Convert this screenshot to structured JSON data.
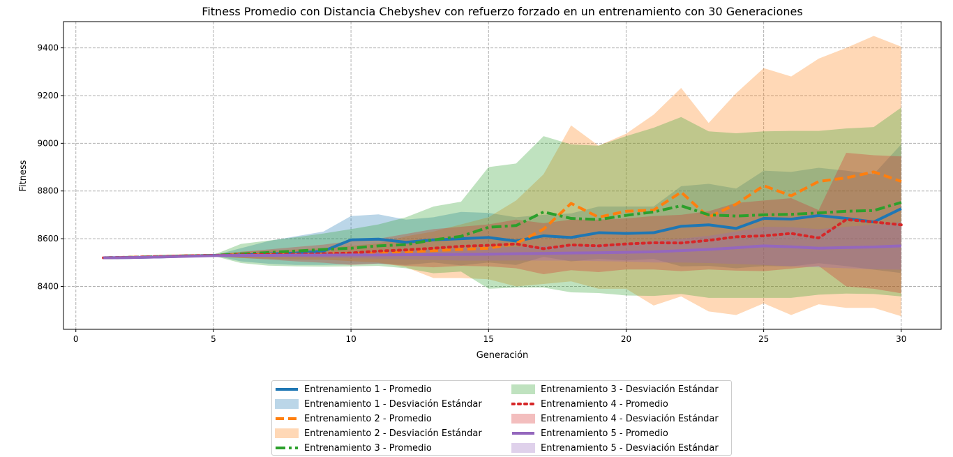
{
  "chart_data": {
    "type": "line",
    "title": "Fitness Promedio con Distancia Chebyshev con refuerzo forzado en un entrenamiento con 30 Generaciones",
    "xlabel": "Generación",
    "ylabel": "Fitness",
    "xlim": [
      -0.45,
      31.45
    ],
    "ylim": [
      8220,
      9510
    ],
    "xticks": [
      0,
      5,
      10,
      15,
      20,
      25,
      30
    ],
    "yticks": [
      8400,
      8600,
      8800,
      9000,
      9200,
      9400
    ],
    "grid": true,
    "legend_position": "bottom-center",
    "x": [
      1,
      2,
      3,
      4,
      5,
      6,
      7,
      8,
      9,
      10,
      11,
      12,
      13,
      14,
      15,
      16,
      17,
      18,
      19,
      20,
      21,
      22,
      23,
      24,
      25,
      26,
      27,
      28,
      29,
      30
    ],
    "series": [
      {
        "name": "Entrenamiento 1 - Promedio",
        "std_name": "Entrenamiento 1 - Desviación Estándar",
        "color": "#1f77b4",
        "line_style": "solid",
        "values": [
          8520,
          8521,
          8523,
          8527,
          8530,
          8532,
          8536,
          8540,
          8548,
          8595,
          8598,
          8585,
          8595,
          8600,
          8605,
          8590,
          8612,
          8605,
          8625,
          8622,
          8625,
          8652,
          8658,
          8643,
          8685,
          8682,
          8697,
          8685,
          8670,
          8726
        ],
        "upper": [
          8520,
          8522,
          8525,
          8530,
          8530,
          8560,
          8590,
          8610,
          8630,
          8695,
          8702,
          8680,
          8690,
          8712,
          8708,
          8690,
          8700,
          8706,
          8735,
          8735,
          8735,
          8820,
          8830,
          8810,
          8885,
          8880,
          8897,
          8885,
          8870,
          8996
        ],
        "lower": [
          8520,
          8520,
          8521,
          8524,
          8530,
          8505,
          8495,
          8490,
          8490,
          8492,
          8495,
          8490,
          8500,
          8488,
          8500,
          8490,
          8524,
          8505,
          8515,
          8509,
          8515,
          8484,
          8486,
          8476,
          8485,
          8484,
          8497,
          8485,
          8470,
          8456
        ]
      },
      {
        "name": "Entrenamiento 2 - Promedio",
        "std_name": "Entrenamiento 2 - Desviación Estándar",
        "color": "#ff7f0e",
        "line_style": "dashed",
        "values": [
          8520,
          8522,
          8525,
          8528,
          8530,
          8532,
          8533,
          8534,
          8536,
          8538,
          8540,
          8545,
          8550,
          8555,
          8560,
          8580,
          8640,
          8748,
          8690,
          8715,
          8720,
          8795,
          8690,
          8745,
          8822,
          8780,
          8840,
          8855,
          8880,
          8840
        ],
        "upper": [
          8520,
          8524,
          8530,
          8535,
          8535,
          8545,
          8550,
          8555,
          8560,
          8570,
          8580,
          8610,
          8630,
          8660,
          8690,
          8760,
          8870,
          9075,
          8990,
          9040,
          9120,
          9232,
          9085,
          9210,
          9315,
          9280,
          9355,
          9400,
          9450,
          9405
        ],
        "lower": [
          8520,
          8520,
          8520,
          8521,
          8525,
          8519,
          8516,
          8513,
          8512,
          8506,
          8500,
          8480,
          8435,
          8435,
          8430,
          8400,
          8410,
          8421,
          8390,
          8390,
          8320,
          8358,
          8295,
          8280,
          8329,
          8280,
          8325,
          8310,
          8310,
          8275
        ]
      },
      {
        "name": "Entrenamiento 3 - Promedio",
        "std_name": "Entrenamiento 3 - Desviación Estándar",
        "color": "#2ca02c",
        "line_style": "dashdot",
        "values": [
          8520,
          8522,
          8525,
          8528,
          8530,
          8536,
          8542,
          8548,
          8555,
          8560,
          8570,
          8575,
          8595,
          8610,
          8648,
          8655,
          8712,
          8685,
          8680,
          8698,
          8712,
          8738,
          8700,
          8695,
          8700,
          8702,
          8708,
          8715,
          8718,
          8752
        ],
        "upper": [
          8520,
          8523,
          8527,
          8530,
          8532,
          8578,
          8592,
          8606,
          8622,
          8640,
          8660,
          8690,
          8735,
          8755,
          8900,
          8915,
          9030,
          8995,
          8990,
          9030,
          9065,
          9110,
          9050,
          9042,
          9050,
          9052,
          9052,
          9062,
          9068,
          9150
        ],
        "lower": [
          8520,
          8521,
          8523,
          8526,
          8528,
          8498,
          8487,
          8484,
          8483,
          8484,
          8486,
          8476,
          8455,
          8462,
          8390,
          8395,
          8395,
          8375,
          8372,
          8362,
          8360,
          8368,
          8352,
          8352,
          8352,
          8352,
          8365,
          8370,
          8368,
          8358
        ]
      },
      {
        "name": "Entrenamiento 4 - Promedio",
        "std_name": "Entrenamiento 4 - Desviación Estándar",
        "color": "#d62728",
        "line_style": "dotted",
        "values": [
          8520,
          8522,
          8525,
          8528,
          8530,
          8532,
          8534,
          8535,
          8537,
          8540,
          8548,
          8553,
          8560,
          8568,
          8572,
          8578,
          8558,
          8574,
          8570,
          8578,
          8583,
          8582,
          8593,
          8608,
          8612,
          8622,
          8603,
          8680,
          8670,
          8658
        ],
        "upper": [
          8520,
          8523,
          8527,
          8530,
          8532,
          8545,
          8555,
          8565,
          8575,
          8590,
          8600,
          8620,
          8640,
          8650,
          8660,
          8680,
          8665,
          8680,
          8680,
          8685,
          8695,
          8700,
          8715,
          8750,
          8760,
          8770,
          8720,
          8960,
          8950,
          8945
        ],
        "lower": [
          8520,
          8521,
          8523,
          8526,
          8528,
          8519,
          8513,
          8505,
          8499,
          8490,
          8496,
          8486,
          8480,
          8486,
          8484,
          8476,
          8451,
          8468,
          8460,
          8471,
          8471,
          8464,
          8471,
          8466,
          8464,
          8474,
          8486,
          8400,
          8390,
          8371
        ]
      },
      {
        "name": "Entrenamiento 5 - Promedio",
        "std_name": "Entrenamiento 5 - Desviación Estándar",
        "color": "#9467bd",
        "line_style": "solid",
        "values": [
          8520,
          8521,
          8523,
          8526,
          8529,
          8530,
          8530,
          8531,
          8531,
          8532,
          8532,
          8533,
          8533,
          8534,
          8535,
          8537,
          8538,
          8540,
          8541,
          8543,
          8545,
          8550,
          8555,
          8562,
          8570,
          8566,
          8560,
          8563,
          8565,
          8570
        ],
        "upper": [
          8520,
          8522,
          8525,
          8528,
          8531,
          8535,
          8537,
          8540,
          8542,
          8545,
          8548,
          8552,
          8555,
          8560,
          8562,
          8565,
          8568,
          8572,
          8576,
          8582,
          8590,
          8600,
          8612,
          8630,
          8650,
          8648,
          8640,
          8650,
          8658,
          8670
        ],
        "lower": [
          8520,
          8520,
          8521,
          8524,
          8527,
          8525,
          8523,
          8522,
          8520,
          8519,
          8516,
          8514,
          8511,
          8508,
          8508,
          8509,
          8508,
          8508,
          8506,
          8504,
          8500,
          8500,
          8498,
          8494,
          8490,
          8484,
          8480,
          8476,
          8472,
          8470
        ]
      }
    ]
  }
}
